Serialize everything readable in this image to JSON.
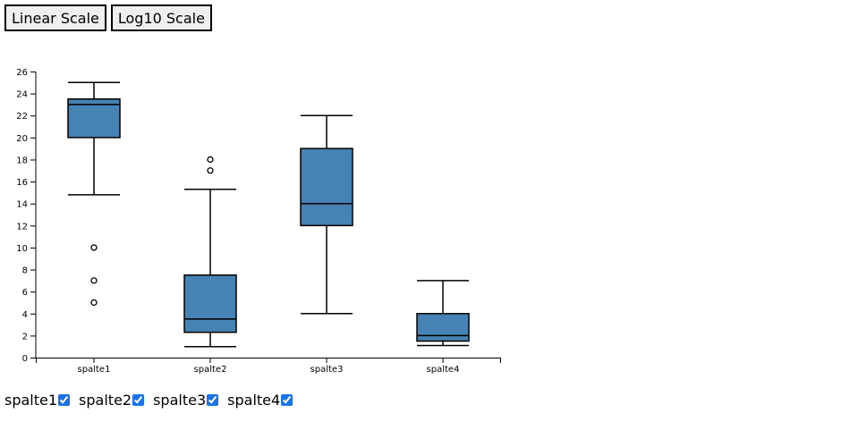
{
  "toolbar": {
    "linear_label": "Linear Scale",
    "log_label": "Log10 Scale"
  },
  "toggles": [
    {
      "label": "spalte1",
      "checked": true
    },
    {
      "label": "spalte2",
      "checked": true
    },
    {
      "label": "spalte3",
      "checked": true
    },
    {
      "label": "spalte4",
      "checked": true
    }
  ],
  "colors": {
    "box_fill": "#4682b4",
    "stroke": "#000000",
    "axis": "#000000"
  },
  "chart_data": {
    "type": "boxplot",
    "title": "",
    "xlabel": "",
    "ylabel": "",
    "ylim": [
      0,
      26
    ],
    "yticks": [
      0,
      2,
      4,
      6,
      8,
      10,
      12,
      14,
      16,
      18,
      20,
      22,
      24,
      26
    ],
    "categories": [
      "spalte1",
      "spalte2",
      "spalte3",
      "spalte4"
    ],
    "boxes": [
      {
        "name": "spalte1",
        "whisker_low": 14.8,
        "q1": 20,
        "median": 23,
        "q3": 23.5,
        "whisker_high": 25,
        "outliers": [
          10,
          7,
          5
        ]
      },
      {
        "name": "spalte2",
        "whisker_low": 1,
        "q1": 2.3,
        "median": 3.5,
        "q3": 7.5,
        "whisker_high": 15.3,
        "outliers": [
          18,
          17
        ]
      },
      {
        "name": "spalte3",
        "whisker_low": 4,
        "q1": 12,
        "median": 14,
        "q3": 19,
        "whisker_high": 22,
        "outliers": []
      },
      {
        "name": "spalte4",
        "whisker_low": 1.1,
        "q1": 1.5,
        "median": 2,
        "q3": 4,
        "whisker_high": 7,
        "outliers": []
      }
    ]
  }
}
